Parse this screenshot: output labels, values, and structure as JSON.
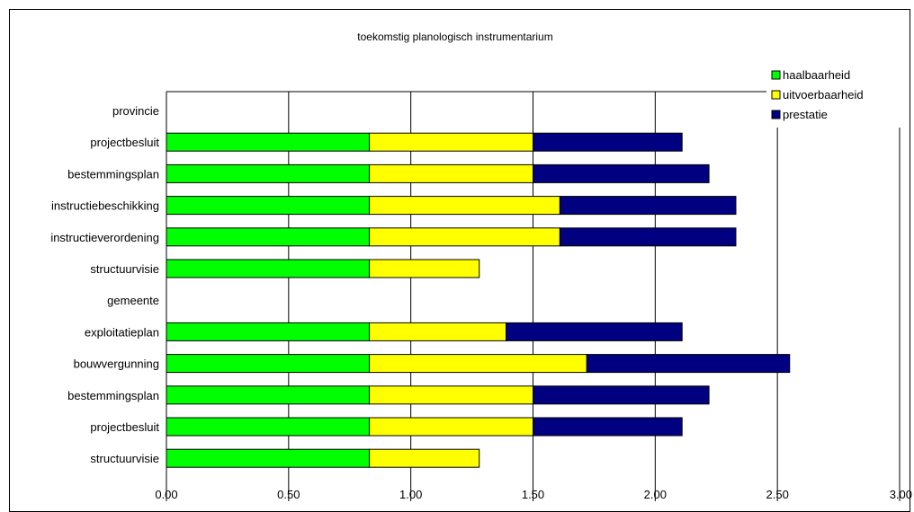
{
  "chart_data": {
    "type": "bar",
    "orientation": "horizontal",
    "stacked": true,
    "title": "toekomstig planologisch instrumentarium",
    "xlabel": "",
    "ylabel": "",
    "xlim": [
      0,
      3.0
    ],
    "x_ticks": [
      "0.00",
      "0.50",
      "1.00",
      "1.50",
      "2.00",
      "2.50",
      "3.00"
    ],
    "x_tick_values": [
      0,
      0.5,
      1.0,
      1.5,
      2.0,
      2.5,
      3.0
    ],
    "grid": true,
    "legend_position": "top-right",
    "categories": [
      "provincie",
      "projectbesluit",
      "bestemmingsplan",
      "instructiebeschikking",
      "instructieverordening",
      "structuurvisie",
      "gemeente",
      "exploitatieplan",
      "bouwvergunning",
      "bestemmingsplan",
      "projectbesluit",
      "structuurvisie"
    ],
    "series": [
      {
        "name": "haalbaarheid",
        "color": "#00ff00",
        "values": [
          null,
          0.83,
          0.83,
          0.83,
          0.83,
          0.83,
          null,
          0.83,
          0.83,
          0.83,
          0.83,
          0.83
        ]
      },
      {
        "name": "uitvoerbaarheid",
        "color": "#ffff00",
        "values": [
          null,
          0.67,
          0.67,
          0.78,
          0.78,
          0.45,
          null,
          0.56,
          0.89,
          0.67,
          0.67,
          0.45
        ]
      },
      {
        "name": "prestatie",
        "color": "#000080",
        "values": [
          null,
          0.61,
          0.72,
          0.72,
          0.72,
          null,
          null,
          0.72,
          0.83,
          0.72,
          0.61,
          null
        ]
      }
    ]
  }
}
